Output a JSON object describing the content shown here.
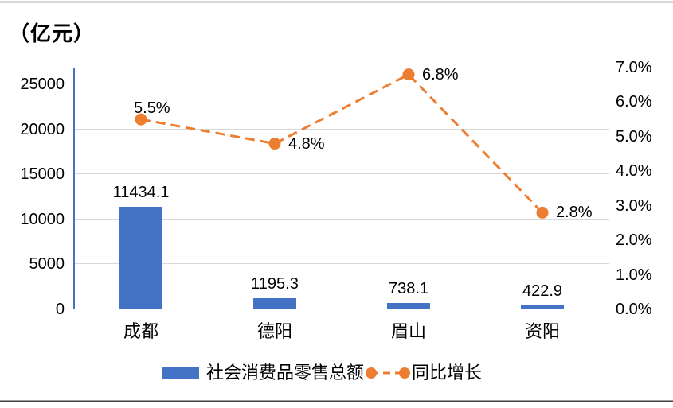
{
  "chart_data": {
    "type": "bar",
    "subtype": "combo_bar_line_dual_axis",
    "title": "（亿元）",
    "categories": [
      "成都",
      "德阳",
      "眉山",
      "资阳"
    ],
    "series": [
      {
        "name": "社会消费品零售总额",
        "type": "bar",
        "axis": "left",
        "color": "#4472C4",
        "values": [
          11434.1,
          1195.3,
          738.1,
          422.9
        ],
        "labels": [
          "11434.1",
          "1195.3",
          "738.1",
          "422.9"
        ]
      },
      {
        "name": "同比增长",
        "type": "line",
        "axis": "right",
        "color": "#ED7D31",
        "line_style": "dashed",
        "marker": "circle",
        "values": [
          5.5,
          4.8,
          6.8,
          2.8
        ],
        "labels": [
          "5.5%",
          "4.8%",
          "6.8%",
          "2.8%"
        ],
        "label_placement": [
          "above",
          "right",
          "right",
          "right"
        ]
      }
    ],
    "left_axis": {
      "min": 0,
      "max": 25000,
      "step": 5000,
      "tick_labels": [
        "0",
        "5000",
        "10000",
        "15000",
        "20000",
        "25000"
      ]
    },
    "right_axis": {
      "min": 0,
      "max": 7,
      "step": 1,
      "tick_labels": [
        "0.0%",
        "1.0%",
        "2.0%",
        "3.0%",
        "4.0%",
        "5.0%",
        "6.0%",
        "7.0%"
      ]
    },
    "grid": true,
    "legend_position": "bottom",
    "colors": {
      "grid": "#D9D9D9",
      "axis_line": "#4472C4",
      "text": "#000000",
      "top_rule": "#D6D6D6",
      "bottom_rule": "#434343"
    }
  }
}
